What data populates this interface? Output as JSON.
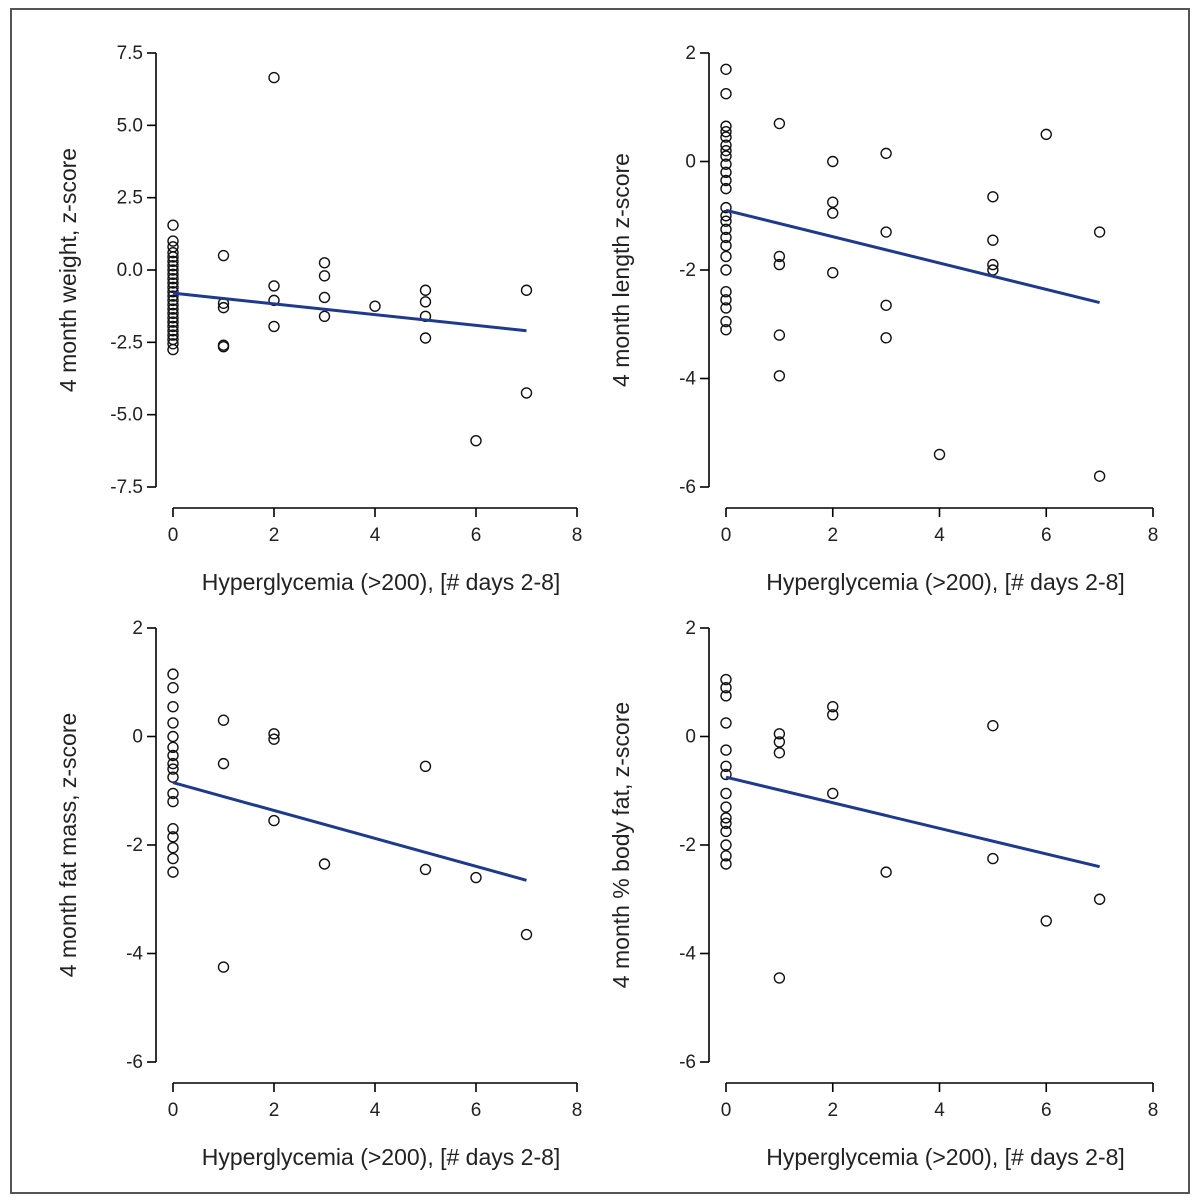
{
  "style": {
    "fit_line_color": "#1f3a8c",
    "point_color": "#111111",
    "axis_color": "#000000",
    "background": "#ffffff"
  },
  "chart_data": [
    {
      "id": "weight",
      "type": "scatter",
      "xlabel": "Hyperglycemia (>200), [# days 2-8]",
      "ylabel": "4 month weight, z-score",
      "xlim": [
        0,
        8
      ],
      "ylim": [
        -7.5,
        7.5
      ],
      "xticks": [
        0,
        2,
        4,
        6,
        8
      ],
      "xtick_labels": [
        "0",
        "2",
        "4",
        "6",
        "8"
      ],
      "yticks": [
        -7.5,
        -5.0,
        -2.5,
        0.0,
        2.5,
        5.0,
        7.5
      ],
      "ytick_labels": [
        "-7.5",
        "-5.0",
        "-2.5",
        "0.0",
        "2.5",
        "5.0",
        "7.5"
      ],
      "grid": false,
      "points": [
        [
          0,
          1.55
        ],
        [
          0,
          1.0
        ],
        [
          0,
          0.8
        ],
        [
          0,
          0.6
        ],
        [
          0,
          0.45
        ],
        [
          0,
          0.3
        ],
        [
          0,
          0.15
        ],
        [
          0,
          0.0
        ],
        [
          0,
          -0.15
        ],
        [
          0,
          -0.3
        ],
        [
          0,
          -0.45
        ],
        [
          0,
          -0.6
        ],
        [
          0,
          -0.75
        ],
        [
          0,
          -0.9
        ],
        [
          0,
          -1.05
        ],
        [
          0,
          -1.2
        ],
        [
          0,
          -1.35
        ],
        [
          0,
          -1.5
        ],
        [
          0,
          -1.65
        ],
        [
          0,
          -1.8
        ],
        [
          0,
          -1.95
        ],
        [
          0,
          -2.1
        ],
        [
          0,
          -2.25
        ],
        [
          0,
          -2.4
        ],
        [
          0,
          -2.55
        ],
        [
          0,
          -2.75
        ],
        [
          1,
          0.5
        ],
        [
          1,
          -1.15
        ],
        [
          1,
          -1.3
        ],
        [
          1,
          -2.6
        ],
        [
          1,
          -2.65
        ],
        [
          2,
          6.65
        ],
        [
          2,
          -0.55
        ],
        [
          2,
          -1.05
        ],
        [
          2,
          -1.95
        ],
        [
          3,
          0.25
        ],
        [
          3,
          -0.2
        ],
        [
          3,
          -0.95
        ],
        [
          3,
          -1.6
        ],
        [
          4,
          -1.25
        ],
        [
          5,
          -0.7
        ],
        [
          5,
          -1.1
        ],
        [
          5,
          -1.6
        ],
        [
          5,
          -2.35
        ],
        [
          6,
          -5.9
        ],
        [
          7,
          -0.7
        ],
        [
          7,
          -4.25
        ]
      ],
      "fit_line": [
        [
          0,
          -0.8
        ],
        [
          7,
          -2.1
        ]
      ]
    },
    {
      "id": "length",
      "type": "scatter",
      "xlabel": "Hyperglycemia (>200), [# days 2-8]",
      "ylabel": "4 month length z-score",
      "xlim": [
        0,
        8
      ],
      "ylim": [
        -6,
        2
      ],
      "xticks": [
        0,
        2,
        4,
        6,
        8
      ],
      "xtick_labels": [
        "0",
        "2",
        "4",
        "6",
        "8"
      ],
      "yticks": [
        -6,
        -4,
        -2,
        0,
        2
      ],
      "ytick_labels": [
        "-6",
        "-4",
        "-2",
        "0",
        "2"
      ],
      "grid": false,
      "points": [
        [
          0,
          1.7
        ],
        [
          0,
          1.25
        ],
        [
          0,
          0.65
        ],
        [
          0,
          0.55
        ],
        [
          0,
          0.45
        ],
        [
          0,
          0.3
        ],
        [
          0,
          0.2
        ],
        [
          0,
          0.1
        ],
        [
          0,
          -0.05
        ],
        [
          0,
          -0.2
        ],
        [
          0,
          -0.35
        ],
        [
          0,
          -0.5
        ],
        [
          0,
          -0.85
        ],
        [
          0,
          -1.0
        ],
        [
          0,
          -1.1
        ],
        [
          0,
          -1.25
        ],
        [
          0,
          -1.4
        ],
        [
          0,
          -1.55
        ],
        [
          0,
          -1.75
        ],
        [
          0,
          -2.0
        ],
        [
          0,
          -2.4
        ],
        [
          0,
          -2.55
        ],
        [
          0,
          -2.7
        ],
        [
          0,
          -2.95
        ],
        [
          0,
          -3.1
        ],
        [
          1,
          0.7
        ],
        [
          1,
          -1.75
        ],
        [
          1,
          -1.9
        ],
        [
          1,
          -3.2
        ],
        [
          1,
          -3.95
        ],
        [
          2,
          0.0
        ],
        [
          2,
          -0.75
        ],
        [
          2,
          -0.95
        ],
        [
          2,
          -2.05
        ],
        [
          3,
          0.15
        ],
        [
          3,
          -1.3
        ],
        [
          3,
          -2.65
        ],
        [
          3,
          -3.25
        ],
        [
          4,
          -5.4
        ],
        [
          5,
          -0.65
        ],
        [
          5,
          -1.45
        ],
        [
          5,
          -1.9
        ],
        [
          5,
          -2.0
        ],
        [
          6,
          0.5
        ],
        [
          7,
          -1.3
        ],
        [
          7,
          -5.8
        ]
      ],
      "fit_line": [
        [
          0,
          -0.9
        ],
        [
          7,
          -2.6
        ]
      ]
    },
    {
      "id": "fatmass",
      "type": "scatter",
      "xlabel": "Hyperglycemia (>200), [# days 2-8]",
      "ylabel": "4 month fat mass, z-score",
      "xlim": [
        0,
        8
      ],
      "ylim": [
        -6,
        2
      ],
      "xticks": [
        0,
        2,
        4,
        6,
        8
      ],
      "xtick_labels": [
        "0",
        "2",
        "4",
        "6",
        "8"
      ],
      "yticks": [
        -6,
        -4,
        -2,
        0,
        2
      ],
      "ytick_labels": [
        "-6",
        "-4",
        "-2",
        "0",
        "2"
      ],
      "grid": false,
      "points": [
        [
          0,
          1.15
        ],
        [
          0,
          0.9
        ],
        [
          0,
          0.55
        ],
        [
          0,
          0.25
        ],
        [
          0,
          0.0
        ],
        [
          0,
          -0.2
        ],
        [
          0,
          -0.35
        ],
        [
          0,
          -0.5
        ],
        [
          0,
          -0.6
        ],
        [
          0,
          -0.75
        ],
        [
          0,
          -1.05
        ],
        [
          0,
          -1.2
        ],
        [
          0,
          -1.7
        ],
        [
          0,
          -1.85
        ],
        [
          0,
          -2.05
        ],
        [
          0,
          -2.25
        ],
        [
          0,
          -2.5
        ],
        [
          1,
          0.3
        ],
        [
          1,
          -0.5
        ],
        [
          1,
          -4.25
        ],
        [
          2,
          0.05
        ],
        [
          2,
          -0.05
        ],
        [
          2,
          -1.55
        ],
        [
          3,
          -2.35
        ],
        [
          5,
          -0.55
        ],
        [
          5,
          -2.45
        ],
        [
          6,
          -2.6
        ],
        [
          7,
          -3.65
        ]
      ],
      "fit_line": [
        [
          0,
          -0.85
        ],
        [
          7,
          -2.65
        ]
      ]
    },
    {
      "id": "bodyfat",
      "type": "scatter",
      "xlabel": "Hyperglycemia (>200), [# days 2-8]",
      "ylabel": "4 month % body fat, z-score",
      "xlim": [
        0,
        8
      ],
      "ylim": [
        -6,
        2
      ],
      "xticks": [
        0,
        2,
        4,
        6,
        8
      ],
      "xtick_labels": [
        "0",
        "2",
        "4",
        "6",
        "8"
      ],
      "yticks": [
        -6,
        -4,
        -2,
        0,
        2
      ],
      "ytick_labels": [
        "-6",
        "-4",
        "-2",
        "0",
        "2"
      ],
      "grid": false,
      "points": [
        [
          0,
          1.05
        ],
        [
          0,
          0.9
        ],
        [
          0,
          0.75
        ],
        [
          0,
          0.25
        ],
        [
          0,
          -0.25
        ],
        [
          0,
          -0.55
        ],
        [
          0,
          -0.7
        ],
        [
          0,
          -1.05
        ],
        [
          0,
          -1.3
        ],
        [
          0,
          -1.5
        ],
        [
          0,
          -1.6
        ],
        [
          0,
          -1.75
        ],
        [
          0,
          -2.0
        ],
        [
          0,
          -2.2
        ],
        [
          0,
          -2.35
        ],
        [
          1,
          0.05
        ],
        [
          1,
          -0.1
        ],
        [
          1,
          -0.3
        ],
        [
          1,
          -4.45
        ],
        [
          2,
          0.55
        ],
        [
          2,
          0.4
        ],
        [
          2,
          -1.05
        ],
        [
          3,
          -2.5
        ],
        [
          5,
          0.2
        ],
        [
          5,
          -2.25
        ],
        [
          6,
          -3.4
        ],
        [
          7,
          -3.0
        ]
      ],
      "fit_line": [
        [
          0,
          -0.75
        ],
        [
          7,
          -2.4
        ]
      ]
    }
  ]
}
